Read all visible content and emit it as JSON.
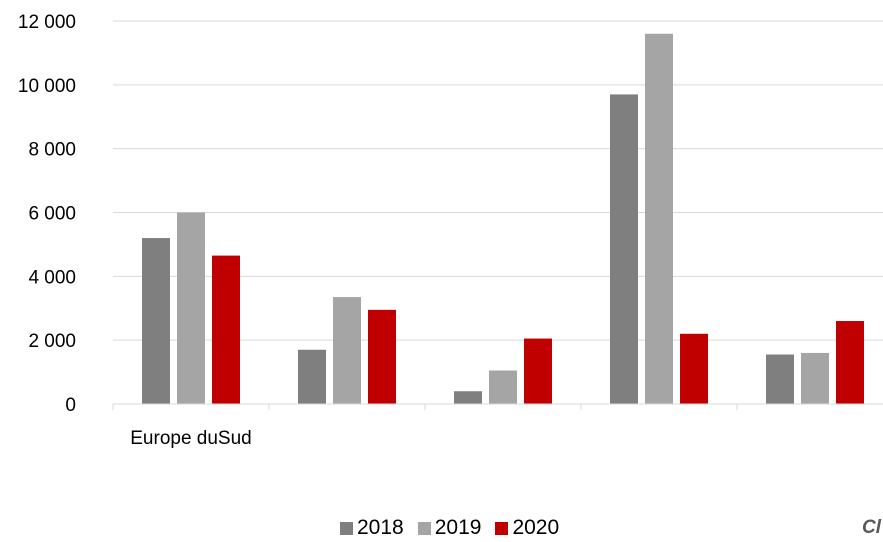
{
  "chart_data": {
    "type": "bar",
    "categories": [
      "Europe duSud",
      "",
      "",
      "",
      ""
    ],
    "series": [
      {
        "name": "2018",
        "color": "#7f7f7f",
        "values": [
          5200,
          1700,
          400,
          9700,
          1550
        ]
      },
      {
        "name": "2019",
        "color": "#a5a5a5",
        "values": [
          6000,
          3350,
          1050,
          11600,
          1600
        ]
      },
      {
        "name": "2020",
        "color": "#c00000",
        "values": [
          4650,
          2950,
          2050,
          2200,
          2600
        ]
      }
    ],
    "ylim": [
      0,
      12000
    ],
    "yticks": [
      0,
      2000,
      4000,
      6000,
      8000,
      10000,
      12000
    ],
    "ytick_labels": [
      "0",
      "2 000",
      "4 000",
      "6 000",
      "8 000",
      "10 000",
      "12 000"
    ],
    "grid": true,
    "legend_position": "bottom"
  },
  "source_mark": "Cl"
}
